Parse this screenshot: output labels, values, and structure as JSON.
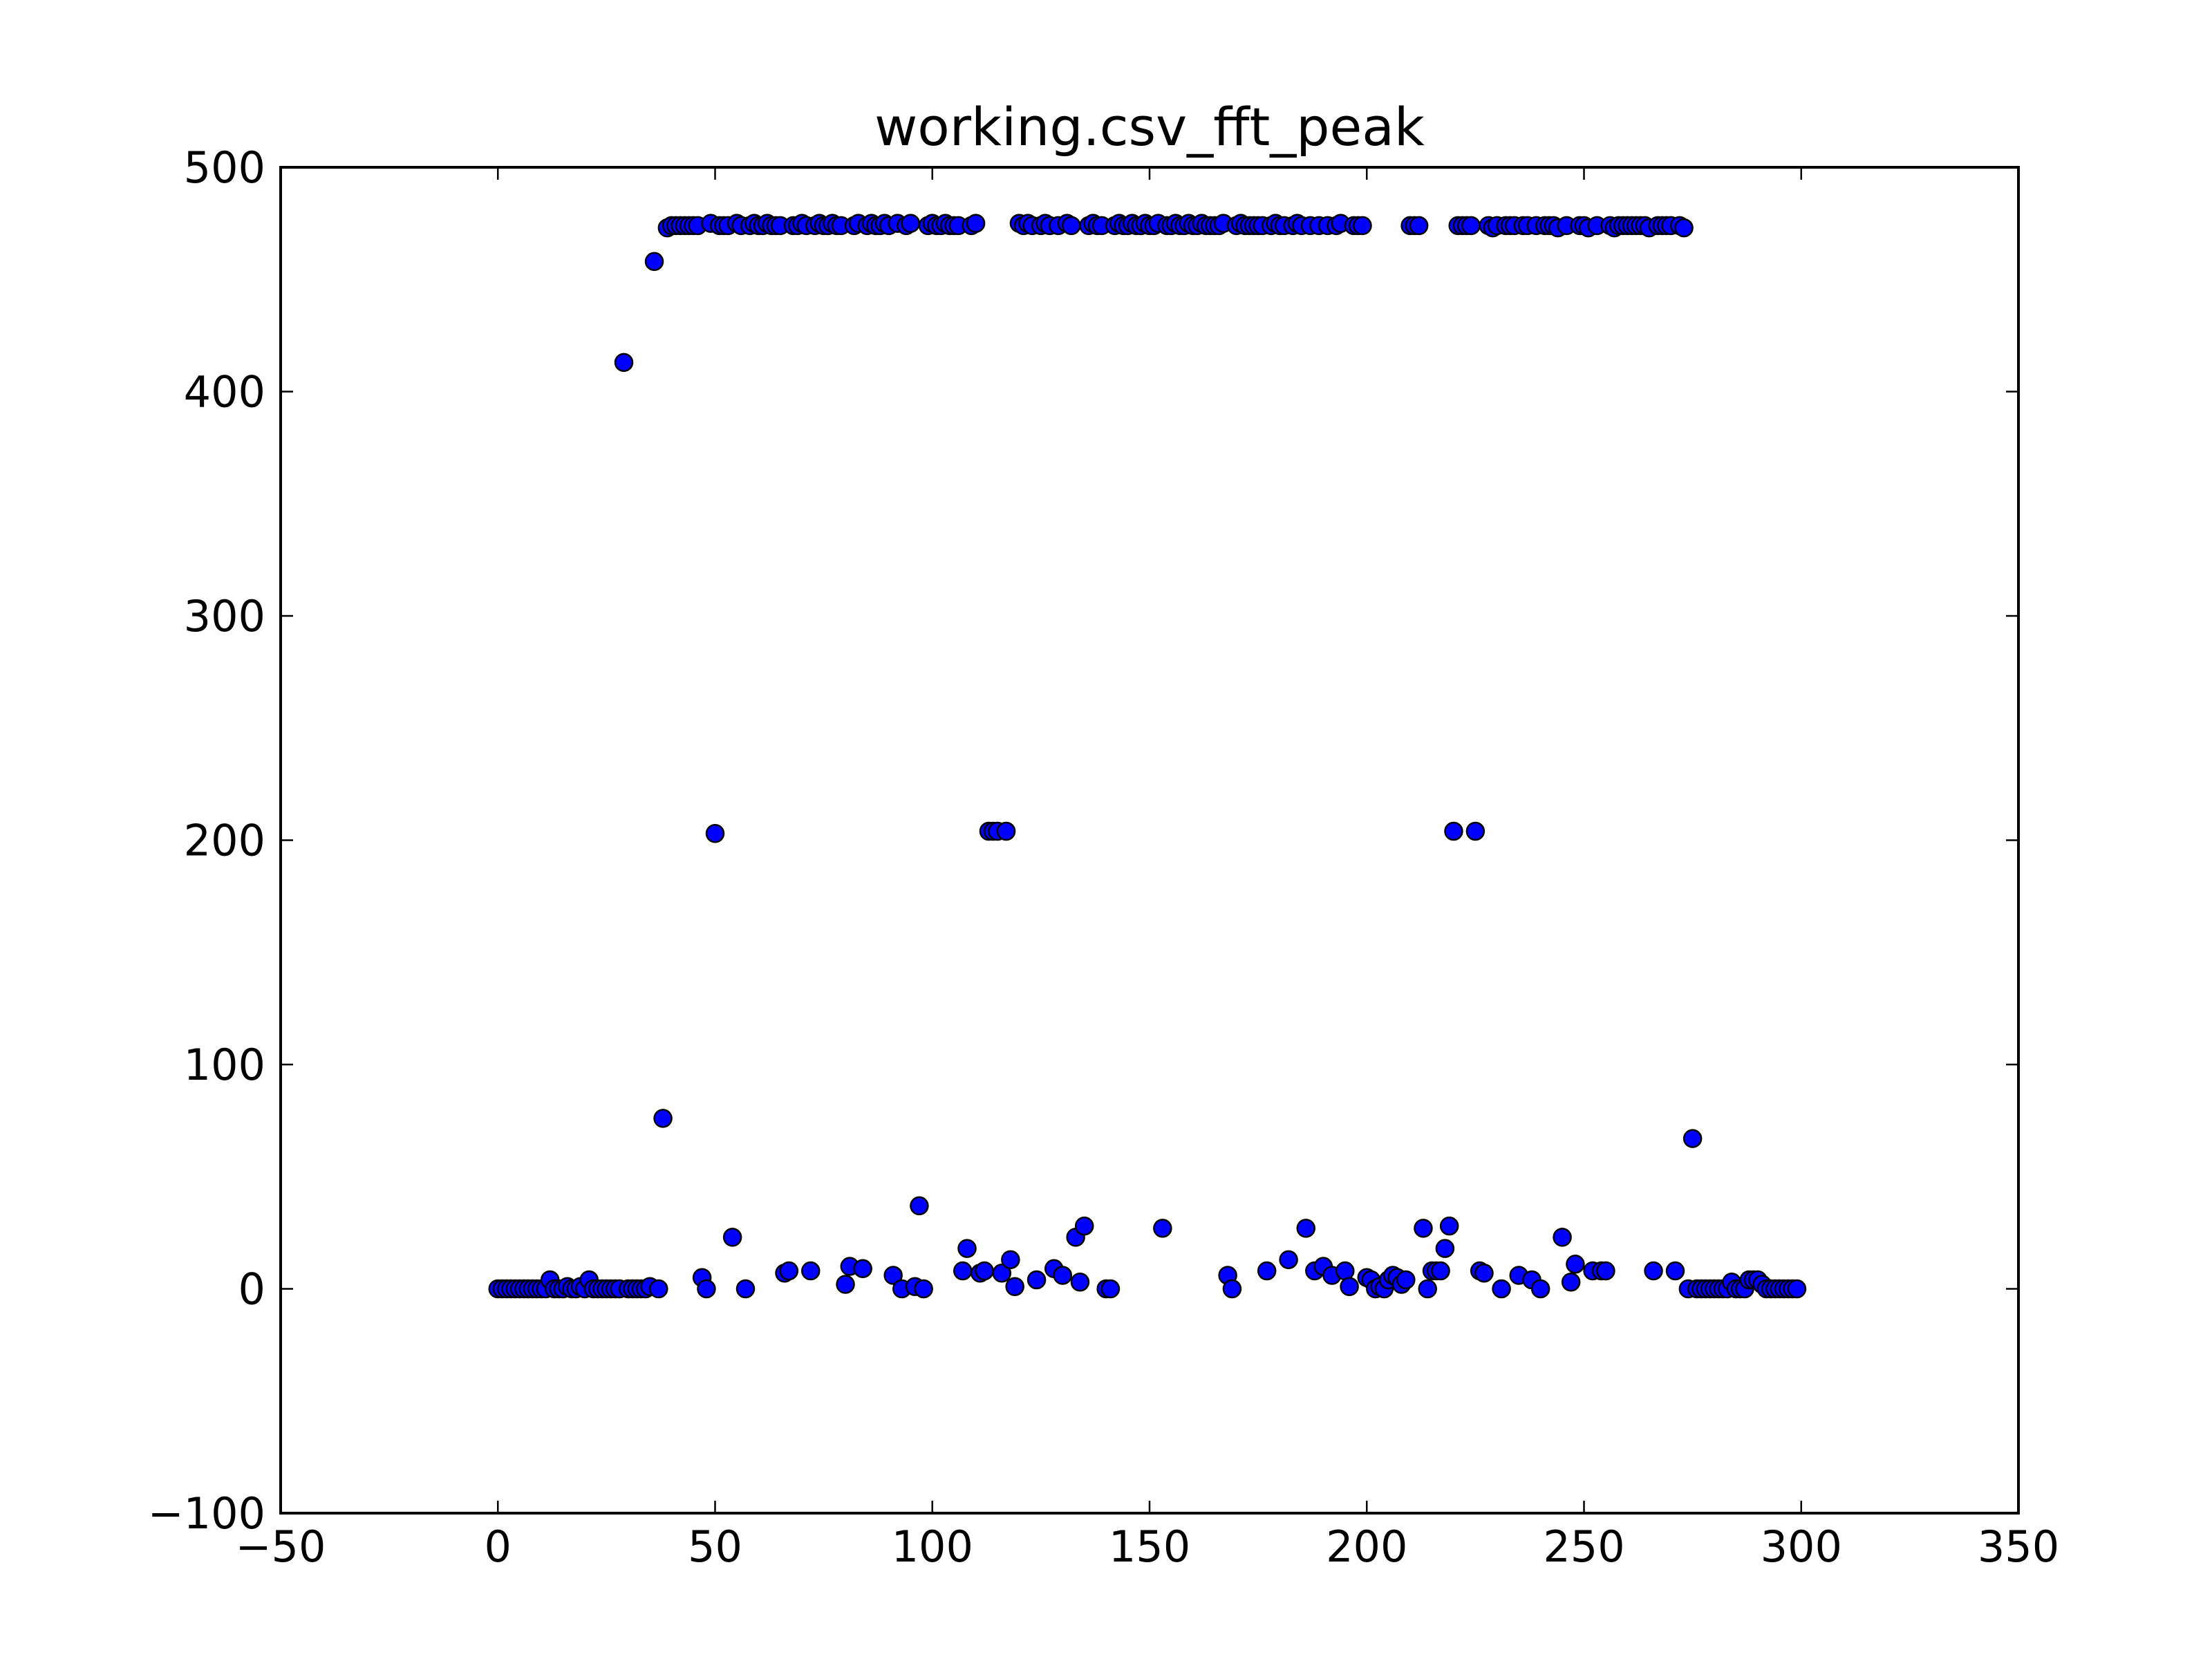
{
  "chart_data": {
    "type": "scatter",
    "title": "working.csv_fft_peak",
    "color": "#0000ff",
    "edgecolor": "#000000",
    "xlim": [
      -50,
      350
    ],
    "xticks": [
      {
        "value": -50,
        "label": "−50"
      },
      0,
      50,
      100,
      150,
      200,
      250,
      300,
      350
    ],
    "ylim": [
      -100,
      500
    ],
    "yticks": [
      {
        "value": -100,
        "label": "−100"
      },
      0,
      100,
      200,
      300,
      400,
      500
    ],
    "x": [
      0,
      1,
      2,
      3,
      4,
      5,
      6,
      7,
      8,
      9,
      10,
      11,
      12,
      13,
      14,
      15,
      16,
      17,
      18,
      19,
      20,
      21,
      22,
      23,
      24,
      25,
      26,
      27,
      28,
      29,
      30,
      31,
      32,
      33,
      34,
      35,
      36,
      37,
      38,
      39,
      40,
      41,
      42,
      43,
      44,
      45,
      46,
      47,
      48,
      49,
      50,
      51,
      52,
      53,
      54,
      55,
      56,
      57,
      58,
      59,
      60,
      61,
      62,
      63,
      64,
      65,
      66,
      67,
      68,
      69,
      70,
      71,
      72,
      73,
      74,
      75,
      76,
      77,
      78,
      79,
      80,
      81,
      82,
      83,
      84,
      85,
      86,
      87,
      88,
      89,
      90,
      91,
      92,
      93,
      94,
      95,
      96,
      97,
      98,
      99,
      100,
      101,
      102,
      103,
      104,
      105,
      106,
      107,
      108,
      109,
      110,
      111,
      112,
      113,
      114,
      115,
      116,
      117,
      118,
      119,
      120,
      121,
      122,
      123,
      124,
      125,
      126,
      127,
      128,
      129,
      130,
      131,
      132,
      133,
      134,
      135,
      136,
      137,
      138,
      139,
      140,
      141,
      142,
      143,
      144,
      145,
      146,
      147,
      148,
      149,
      150,
      151,
      152,
      153,
      154,
      155,
      156,
      157,
      158,
      159,
      160,
      161,
      162,
      163,
      164,
      165,
      166,
      167,
      168,
      169,
      170,
      171,
      172,
      173,
      174,
      175,
      176,
      177,
      178,
      179,
      180,
      181,
      182,
      183,
      184,
      185,
      186,
      187,
      188,
      189,
      190,
      191,
      192,
      193,
      194,
      195,
      196,
      197,
      198,
      199,
      200,
      201,
      202,
      203,
      204,
      205,
      206,
      207,
      208,
      209,
      210,
      211,
      212,
      213,
      214,
      215,
      216,
      217,
      218,
      219,
      220,
      221,
      222,
      223,
      224,
      225,
      226,
      227,
      228,
      229,
      230,
      231,
      232,
      233,
      234,
      235,
      236,
      237,
      238,
      239,
      240,
      241,
      242,
      243,
      244,
      245,
      246,
      247,
      248,
      249,
      250,
      251,
      252,
      253,
      254,
      255,
      256,
      257,
      258,
      259,
      260,
      261,
      262,
      263,
      264,
      265,
      266,
      267,
      268,
      269,
      270,
      271,
      272,
      273,
      274,
      275,
      276,
      277,
      278,
      279,
      280,
      281,
      282,
      283,
      284,
      285,
      286,
      287,
      288,
      289,
      290,
      291,
      292,
      293,
      294,
      295,
      296,
      297,
      298,
      299
    ],
    "y": [
      0,
      0,
      0,
      0,
      0,
      0,
      0,
      0,
      0,
      0,
      0,
      0,
      4,
      0,
      0,
      0,
      1,
      0,
      0,
      1,
      0,
      4,
      0,
      0,
      0,
      0,
      0,
      0,
      0,
      413,
      0,
      0,
      0,
      0,
      0,
      1,
      458,
      0,
      76,
      473,
      474,
      474,
      474,
      474,
      474,
      474,
      474,
      5,
      0,
      475,
      203,
      474,
      474,
      474,
      23,
      475,
      474,
      0,
      474,
      475,
      474,
      474,
      475,
      474,
      474,
      474,
      7,
      8,
      474,
      474,
      475,
      474,
      8,
      474,
      475,
      474,
      474,
      475,
      474,
      474,
      2,
      10,
      474,
      475,
      9,
      474,
      475,
      474,
      474,
      475,
      474,
      6,
      475,
      0,
      474,
      475,
      1,
      37,
      0,
      474,
      475,
      474,
      474,
      475,
      474,
      474,
      474,
      8,
      18,
      474,
      475,
      7,
      8,
      204,
      204,
      204,
      7,
      204,
      13,
      1,
      475,
      474,
      475,
      474,
      4,
      474,
      475,
      474,
      9,
      474,
      6,
      475,
      474,
      23,
      3,
      28,
      474,
      475,
      474,
      474,
      0,
      0,
      474,
      475,
      474,
      474,
      475,
      474,
      474,
      475,
      474,
      474,
      475,
      27,
      474,
      474,
      475,
      474,
      474,
      475,
      474,
      474,
      475,
      474,
      474,
      474,
      474,
      475,
      6,
      0,
      474,
      475,
      474,
      474,
      474,
      474,
      474,
      8,
      474,
      475,
      474,
      474,
      13,
      474,
      475,
      474,
      27,
      474,
      8,
      474,
      10,
      474,
      6,
      474,
      475,
      8,
      1,
      474,
      474,
      474,
      5,
      4,
      0,
      1,
      0,
      4,
      6,
      5,
      2,
      4,
      474,
      474,
      474,
      27,
      0,
      8,
      8,
      8,
      18,
      28,
      204,
      474,
      474,
      474,
      474,
      204,
      8,
      7,
      474,
      473,
      474,
      0,
      474,
      474,
      474,
      6,
      474,
      474,
      4,
      474,
      0,
      474,
      474,
      474,
      473,
      23,
      474,
      3,
      11,
      474,
      474,
      473,
      8,
      474,
      8,
      8,
      474,
      473,
      474,
      474,
      474,
      474,
      474,
      474,
      474,
      473,
      8,
      474,
      474,
      474,
      474,
      8,
      474,
      473,
      0,
      67,
      0,
      0,
      0,
      0,
      0,
      0,
      0,
      0,
      3,
      0,
      0,
      0,
      4,
      4,
      4,
      2,
      0,
      0,
      0,
      0,
      0,
      0,
      0,
      0
    ]
  }
}
